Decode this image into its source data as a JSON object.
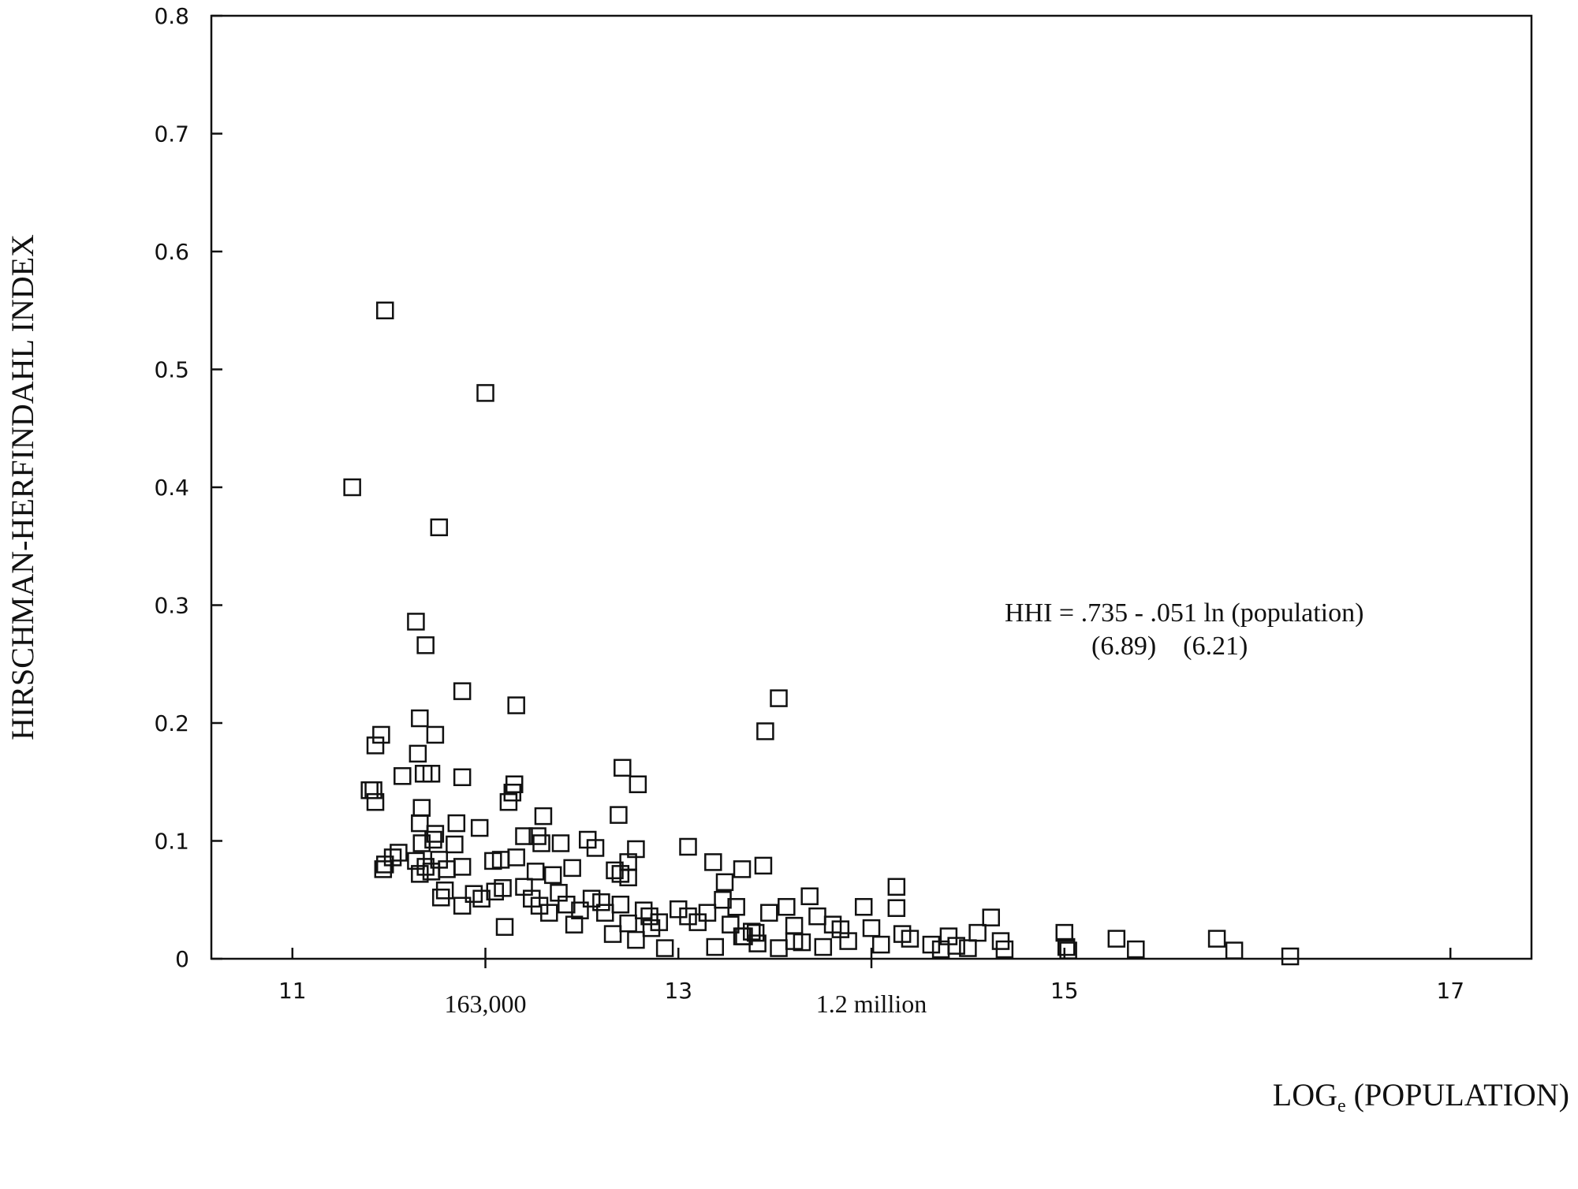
{
  "chart_data": {
    "type": "scatter",
    "title": "",
    "ylabel": "HIRSCHMAN-HERFINDAHL INDEX",
    "xlabel": "LOGe (POPULATION)",
    "xlabel_main": "LOG",
    "xlabel_sub": "e",
    "xlabel_rest": " (POPULATION)",
    "xlim": [
      10.58,
      17.42
    ],
    "ylim": [
      0,
      0.8
    ],
    "x_ticks": [
      11,
      13,
      15,
      17
    ],
    "x_tick_labels": [
      "11",
      "13",
      "15",
      "17"
    ],
    "x_secondary_ticks": [
      12,
      14
    ],
    "x_secondary_labels": [
      "163,000",
      "1.2 million"
    ],
    "y_ticks": [
      0,
      0.1,
      0.2,
      0.3,
      0.4,
      0.5,
      0.6,
      0.7,
      0.8
    ],
    "y_tick_labels": [
      "0",
      "0.1",
      "0.2",
      "0.3",
      "0.4",
      "0.5",
      "0.6",
      "0.7",
      "0.8"
    ],
    "grid": false,
    "marker": "open-square",
    "annotation": {
      "equation": "HHI = .735 - .051 ln (population)",
      "tstats": "(6.89)    (6.21)"
    },
    "series": [
      {
        "points": [
          [
            11.31,
            0.4
          ],
          [
            11.48,
            0.55
          ],
          [
            12.0,
            0.48
          ],
          [
            11.76,
            0.366
          ],
          [
            11.64,
            0.286
          ],
          [
            11.69,
            0.266
          ],
          [
            11.88,
            0.227
          ],
          [
            12.16,
            0.215
          ],
          [
            13.52,
            0.221
          ],
          [
            13.45,
            0.193
          ],
          [
            11.66,
            0.204
          ],
          [
            11.74,
            0.19
          ],
          [
            11.46,
            0.19
          ],
          [
            11.43,
            0.181
          ],
          [
            11.65,
            0.174
          ],
          [
            11.4,
            0.143
          ],
          [
            11.42,
            0.143
          ],
          [
            11.43,
            0.133
          ],
          [
            11.57,
            0.155
          ],
          [
            11.68,
            0.157
          ],
          [
            11.72,
            0.157
          ],
          [
            11.88,
            0.154
          ],
          [
            12.15,
            0.148
          ],
          [
            12.14,
            0.141
          ],
          [
            12.12,
            0.133
          ],
          [
            12.3,
            0.121
          ],
          [
            12.71,
            0.162
          ],
          [
            12.79,
            0.148
          ],
          [
            12.69,
            0.122
          ],
          [
            11.67,
            0.128
          ],
          [
            11.66,
            0.115
          ],
          [
            11.85,
            0.115
          ],
          [
            11.97,
            0.111
          ],
          [
            11.74,
            0.106
          ],
          [
            11.67,
            0.098
          ],
          [
            11.73,
            0.101
          ],
          [
            11.84,
            0.097
          ],
          [
            12.2,
            0.104
          ],
          [
            12.27,
            0.104
          ],
          [
            12.29,
            0.098
          ],
          [
            12.39,
            0.098
          ],
          [
            12.53,
            0.101
          ],
          [
            12.57,
            0.094
          ],
          [
            12.78,
            0.093
          ],
          [
            13.05,
            0.095
          ],
          [
            11.48,
            0.08
          ],
          [
            11.47,
            0.076
          ],
          [
            11.52,
            0.086
          ],
          [
            11.55,
            0.09
          ],
          [
            11.64,
            0.083
          ],
          [
            11.69,
            0.078
          ],
          [
            11.76,
            0.084
          ],
          [
            11.8,
            0.076
          ],
          [
            11.88,
            0.078
          ],
          [
            12.04,
            0.083
          ],
          [
            12.08,
            0.084
          ],
          [
            12.16,
            0.086
          ],
          [
            12.26,
            0.074
          ],
          [
            12.35,
            0.071
          ],
          [
            12.45,
            0.077
          ],
          [
            12.67,
            0.075
          ],
          [
            12.7,
            0.072
          ],
          [
            12.74,
            0.069
          ],
          [
            12.74,
            0.082
          ],
          [
            13.18,
            0.082
          ],
          [
            13.33,
            0.076
          ],
          [
            13.44,
            0.079
          ],
          [
            11.66,
            0.072
          ],
          [
            11.72,
            0.074
          ],
          [
            11.79,
            0.058
          ],
          [
            11.77,
            0.052
          ],
          [
            11.88,
            0.045
          ],
          [
            11.94,
            0.055
          ],
          [
            11.98,
            0.051
          ],
          [
            12.05,
            0.057
          ],
          [
            12.09,
            0.06
          ],
          [
            12.1,
            0.027
          ],
          [
            12.2,
            0.061
          ],
          [
            12.24,
            0.051
          ],
          [
            12.28,
            0.045
          ],
          [
            12.33,
            0.039
          ],
          [
            12.38,
            0.056
          ],
          [
            12.42,
            0.046
          ],
          [
            12.46,
            0.029
          ],
          [
            12.49,
            0.041
          ],
          [
            12.55,
            0.051
          ],
          [
            12.62,
            0.039
          ],
          [
            12.66,
            0.021
          ],
          [
            12.7,
            0.046
          ],
          [
            12.74,
            0.03
          ],
          [
            12.78,
            0.016
          ],
          [
            12.82,
            0.041
          ],
          [
            12.86,
            0.026
          ],
          [
            12.9,
            0.031
          ],
          [
            12.93,
            0.009
          ],
          [
            13.0,
            0.042
          ],
          [
            13.05,
            0.036
          ],
          [
            13.1,
            0.031
          ],
          [
            13.15,
            0.039
          ],
          [
            13.19,
            0.01
          ],
          [
            13.23,
            0.05
          ],
          [
            13.27,
            0.029
          ],
          [
            13.3,
            0.044
          ],
          [
            13.34,
            0.019
          ],
          [
            13.38,
            0.023
          ],
          [
            13.41,
            0.013
          ],
          [
            13.47,
            0.039
          ],
          [
            13.52,
            0.009
          ],
          [
            13.56,
            0.044
          ],
          [
            13.6,
            0.028
          ],
          [
            13.64,
            0.014
          ],
          [
            13.68,
            0.053
          ],
          [
            13.72,
            0.036
          ],
          [
            13.75,
            0.01
          ],
          [
            13.8,
            0.029
          ],
          [
            13.84,
            0.025
          ],
          [
            13.88,
            0.015
          ],
          [
            13.96,
            0.044
          ],
          [
            14.0,
            0.026
          ],
          [
            14.05,
            0.012
          ],
          [
            14.13,
            0.061
          ],
          [
            14.13,
            0.043
          ],
          [
            14.16,
            0.021
          ],
          [
            14.2,
            0.017
          ],
          [
            14.31,
            0.012
          ],
          [
            14.36,
            0.008
          ],
          [
            14.4,
            0.019
          ],
          [
            14.44,
            0.011
          ],
          [
            14.5,
            0.009
          ],
          [
            14.55,
            0.022
          ],
          [
            14.62,
            0.035
          ],
          [
            14.67,
            0.015
          ],
          [
            14.69,
            0.008
          ],
          [
            15.0,
            0.022
          ],
          [
            15.01,
            0.01
          ],
          [
            15.02,
            0.007
          ],
          [
            15.27,
            0.017
          ],
          [
            15.37,
            0.008
          ],
          [
            15.79,
            0.017
          ],
          [
            15.88,
            0.007
          ],
          [
            16.17,
            0.002
          ],
          [
            12.6,
            0.048
          ],
          [
            12.85,
            0.036
          ],
          [
            13.33,
            0.019
          ],
          [
            13.4,
            0.022
          ],
          [
            13.24,
            0.065
          ],
          [
            13.6,
            0.015
          ]
        ]
      }
    ]
  }
}
